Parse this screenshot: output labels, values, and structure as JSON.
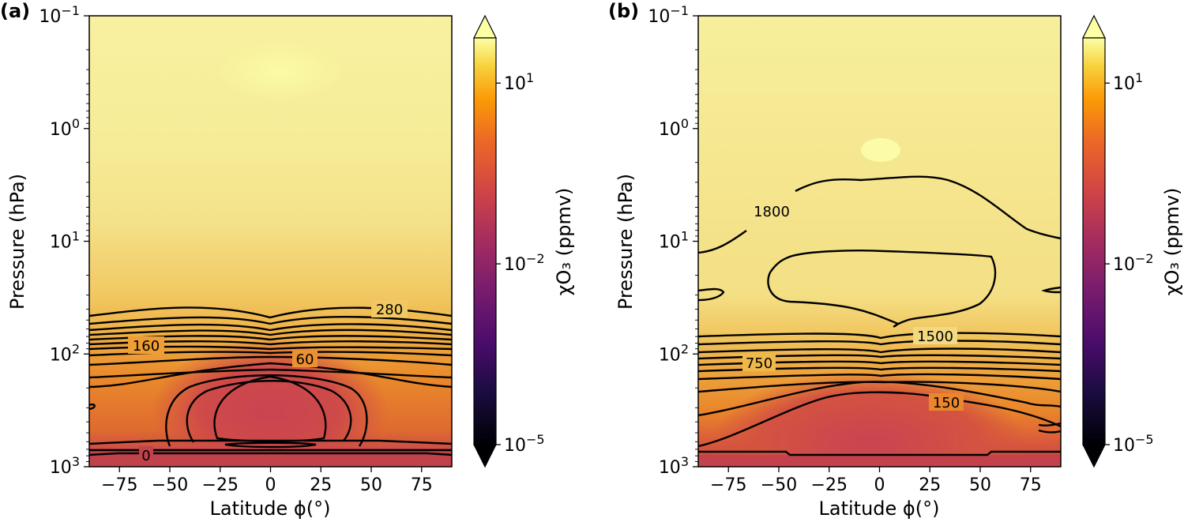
{
  "chart_data": [
    {
      "type": "heatmap",
      "panel_label": "(a)",
      "xlabel": "Latitude ϕ(°)",
      "ylabel": "Pressure (hPa)",
      "x_ticks": [
        -75,
        -50,
        -25,
        0,
        25,
        50,
        75
      ],
      "xlim": [
        -90,
        90
      ],
      "ylim": [
        1000,
        0.1
      ],
      "y_scale": "log",
      "y_ticks": [
        {
          "value": 0.1,
          "base": "10",
          "exp": "−1"
        },
        {
          "value": 1,
          "base": "10",
          "exp": "0"
        },
        {
          "value": 10,
          "base": "10",
          "exp": "1"
        },
        {
          "value": 100,
          "base": "10",
          "exp": "2"
        },
        {
          "value": 1000,
          "base": "10",
          "exp": "3"
        }
      ],
      "contour_labels": [
        "280",
        "160",
        "60",
        "0"
      ],
      "colorbar": {
        "label": "χO₃ (ppmv)",
        "scale": "log",
        "colormap": "inferno",
        "extend": "both",
        "ticks": [
          {
            "base": "10",
            "exp": "1"
          },
          {
            "base": "10",
            "exp": "−2"
          },
          {
            "base": "10",
            "exp": "−5"
          }
        ]
      }
    },
    {
      "type": "heatmap",
      "panel_label": "(b)",
      "xlabel": "Latitude ϕ(°)",
      "ylabel": "Pressure (hPa)",
      "x_ticks": [
        -75,
        -50,
        -25,
        0,
        25,
        50,
        75
      ],
      "xlim": [
        -90,
        90
      ],
      "ylim": [
        1000,
        0.1
      ],
      "y_scale": "log",
      "y_ticks": [
        {
          "value": 0.1,
          "base": "10",
          "exp": "−1"
        },
        {
          "value": 1,
          "base": "10",
          "exp": "0"
        },
        {
          "value": 10,
          "base": "10",
          "exp": "1"
        },
        {
          "value": 100,
          "base": "10",
          "exp": "2"
        },
        {
          "value": 1000,
          "base": "10",
          "exp": "3"
        }
      ],
      "contour_labels": [
        "1800",
        "1500",
        "750",
        "150"
      ],
      "colorbar": {
        "label": "χO₃ (ppmv)",
        "scale": "log",
        "colormap": "inferno",
        "extend": "both",
        "ticks": [
          {
            "base": "10",
            "exp": "1"
          },
          {
            "base": "10",
            "exp": "−2"
          },
          {
            "base": "10",
            "exp": "−5"
          }
        ]
      }
    }
  ],
  "colors": {
    "low": "#000004",
    "mid_low": "#bc3754",
    "mid": "#f98e09",
    "high": "#fcffa4"
  }
}
